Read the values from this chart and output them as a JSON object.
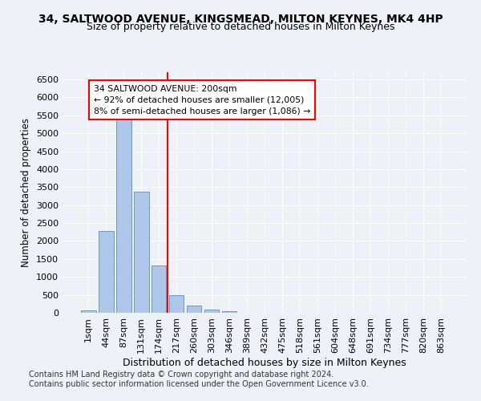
{
  "title_line1": "34, SALTWOOD AVENUE, KINGSMEAD, MILTON KEYNES, MK4 4HP",
  "title_line2": "Size of property relative to detached houses in Milton Keynes",
  "xlabel": "Distribution of detached houses by size in Milton Keynes",
  "ylabel": "Number of detached properties",
  "footnote1": "Contains HM Land Registry data © Crown copyright and database right 2024.",
  "footnote2": "Contains public sector information licensed under the Open Government Licence v3.0.",
  "bar_labels": [
    "1sqm",
    "44sqm",
    "87sqm",
    "131sqm",
    "174sqm",
    "217sqm",
    "260sqm",
    "303sqm",
    "346sqm",
    "389sqm",
    "432sqm",
    "475sqm",
    "518sqm",
    "561sqm",
    "604sqm",
    "648sqm",
    "691sqm",
    "734sqm",
    "777sqm",
    "820sqm",
    "863sqm"
  ],
  "bar_values": [
    60,
    2270,
    5400,
    3380,
    1310,
    490,
    195,
    90,
    40,
    0,
    0,
    0,
    0,
    0,
    0,
    0,
    0,
    0,
    0,
    0,
    0
  ],
  "bar_color": "#aec6e8",
  "bar_edge_color": "#5b8fc4",
  "red_line_x": 4.5,
  "annotation_text": "34 SALTWOOD AVENUE: 200sqm\n← 92% of detached houses are smaller (12,005)\n8% of semi-detached houses are larger (1,086) →",
  "annotation_box_color": "white",
  "annotation_box_edge_color": "red",
  "ylim": [
    0,
    6700
  ],
  "yticks": [
    0,
    500,
    1000,
    1500,
    2000,
    2500,
    3000,
    3500,
    4000,
    4500,
    5000,
    5500,
    6000,
    6500
  ],
  "bg_color": "#eef2f8",
  "grid_color": "white",
  "title1_fontsize": 10,
  "title2_fontsize": 9,
  "xlabel_fontsize": 9,
  "ylabel_fontsize": 8.5,
  "footnote_fontsize": 7
}
